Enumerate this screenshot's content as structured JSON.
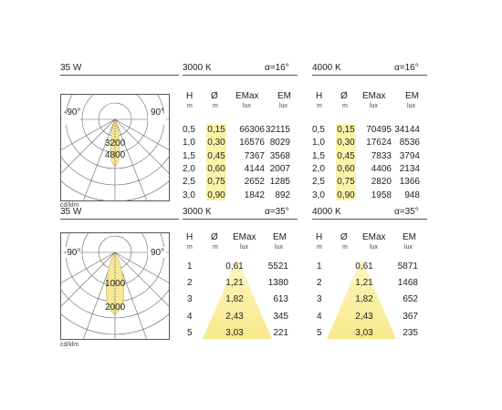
{
  "section1": {
    "power": "35 W",
    "left_head": {
      "cct": "3000 K",
      "angle": "α=16°"
    },
    "right_head": {
      "cct": "4000 K",
      "angle": "α=16°"
    },
    "polar": {
      "left_angle": "-90°",
      "right_angle": "90°",
      "val1": "3200",
      "val2": "4800",
      "unit": "cd/klm"
    },
    "col_head": {
      "h": "H",
      "h_unit": "m",
      "d": "Ø",
      "d_unit": "m",
      "emax": "EMax",
      "emax_unit": "lux",
      "em": "EM",
      "em_unit": "lux"
    },
    "rows_left": [
      {
        "h": "0,5",
        "d": "0,15",
        "emax": "66306",
        "em": "32115"
      },
      {
        "h": "1,0",
        "d": "0,30",
        "emax": "16576",
        "em": "8029"
      },
      {
        "h": "1,5",
        "d": "0,45",
        "emax": "7367",
        "em": "3568"
      },
      {
        "h": "2,0",
        "d": "0,60",
        "emax": "4144",
        "em": "2007"
      },
      {
        "h": "2,5",
        "d": "0,75",
        "emax": "2652",
        "em": "1285"
      },
      {
        "h": "3,0",
        "d": "0,90",
        "emax": "1842",
        "em": "892"
      }
    ],
    "rows_right": [
      {
        "h": "0,5",
        "d": "0,15",
        "emax": "70495",
        "em": "34144"
      },
      {
        "h": "1,0",
        "d": "0,30",
        "emax": "17624",
        "em": "8536"
      },
      {
        "h": "1,5",
        "d": "0,45",
        "emax": "7833",
        "em": "3794"
      },
      {
        "h": "2,0",
        "d": "0,60",
        "emax": "4406",
        "em": "2134"
      },
      {
        "h": "2,5",
        "d": "0,75",
        "emax": "2820",
        "em": "1366"
      },
      {
        "h": "3,0",
        "d": "0,90",
        "emax": "1958",
        "em": "948"
      }
    ]
  },
  "section2": {
    "power": "35 W",
    "left_head": {
      "cct": "3000 K",
      "angle": "α=35°"
    },
    "right_head": {
      "cct": "4000 K",
      "angle": "α=35°"
    },
    "polar": {
      "left_angle": "-90°",
      "right_angle": "90°",
      "val1": "1000",
      "val2": "2000",
      "unit": "cd/klm"
    },
    "col_head": {
      "h": "H",
      "h_unit": "m",
      "d": "Ø",
      "d_unit": "m",
      "emax": "EMax",
      "emax_unit": "lux",
      "em": "EM",
      "em_unit": "lux"
    },
    "rows_left": [
      {
        "h": "1",
        "d": "0,61",
        "em": "5521"
      },
      {
        "h": "2",
        "d": "1,21",
        "em": "1380"
      },
      {
        "h": "3",
        "d": "1,82",
        "em": "613"
      },
      {
        "h": "4",
        "d": "2,43",
        "em": "345"
      },
      {
        "h": "5",
        "d": "3,03",
        "em": "221"
      }
    ],
    "rows_right": [
      {
        "h": "1",
        "d": "0,61",
        "em": "5871"
      },
      {
        "h": "2",
        "d": "1,21",
        "em": "1468"
      },
      {
        "h": "3",
        "d": "1,82",
        "em": "652"
      },
      {
        "h": "4",
        "d": "2,43",
        "em": "367"
      },
      {
        "h": "5",
        "d": "3,03",
        "em": "235"
      }
    ]
  },
  "colors": {
    "highlight": "#fbf3a8",
    "rule": "#555555"
  }
}
